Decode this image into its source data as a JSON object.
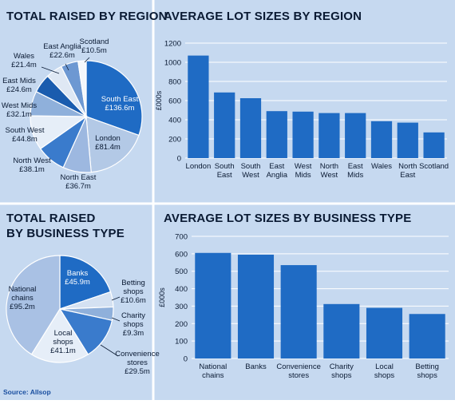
{
  "colors": {
    "background": "#c6d9f0",
    "bar": "#1f6bc4",
    "grid": "#ffffff",
    "text": "#0a1a33"
  },
  "source": "Source: Allsop",
  "chart_data": [
    {
      "type": "pie",
      "title": "TOTAL RAISED BY REGION",
      "slices": [
        {
          "name": "South East",
          "label": "£136.6m",
          "value": 136.6,
          "color": "#1f6bc4"
        },
        {
          "name": "London",
          "label": "£81.4m",
          "value": 81.4,
          "color": "#b3c9e6"
        },
        {
          "name": "North East",
          "label": "£36.7m",
          "value": 36.7,
          "color": "#9db8e0"
        },
        {
          "name": "North West",
          "label": "£38.1m",
          "value": 38.1,
          "color": "#3a7bcc"
        },
        {
          "name": "South West",
          "label": "£44.8m",
          "value": 44.8,
          "color": "#e6eef8"
        },
        {
          "name": "West Mids",
          "label": "£32.1m",
          "value": 32.1,
          "color": "#8fb0db"
        },
        {
          "name": "East Mids",
          "label": "£24.6m",
          "value": 24.6,
          "color": "#1a5cae"
        },
        {
          "name": "Wales",
          "label": "£21.4m",
          "value": 21.4,
          "color": "#dfe8f4"
        },
        {
          "name": "East Anglia",
          "label": "£22.6m",
          "value": 22.6,
          "color": "#6d98d2"
        },
        {
          "name": "Scotland",
          "label": "£10.5m",
          "value": 10.5,
          "color": "#f4f7fb"
        }
      ]
    },
    {
      "type": "bar",
      "title": "AVERAGE LOT SIZES BY REGION",
      "ylabel": "£000s",
      "ylim": [
        0,
        1200
      ],
      "yticks": [
        0,
        200,
        400,
        600,
        800,
        1000,
        1200
      ],
      "categories": [
        "London",
        "South East",
        "South West",
        "East Anglia",
        "West Mids",
        "North West",
        "East Mids",
        "Wales",
        "North East",
        "Scotland"
      ],
      "values": [
        1070,
        685,
        625,
        490,
        485,
        470,
        470,
        385,
        370,
        268
      ]
    },
    {
      "type": "pie",
      "title": "TOTAL RAISED BY BUSINESS TYPE",
      "slices": [
        {
          "name": "Banks",
          "label": "£45.9m",
          "value": 45.9,
          "color": "#1f6bc4"
        },
        {
          "name": "Betting shops",
          "label": "£10.6m",
          "value": 10.6,
          "color": "#d4e1f2"
        },
        {
          "name": "Charity shops",
          "label": "£9.3m",
          "value": 9.3,
          "color": "#8fb0db"
        },
        {
          "name": "Convenience stores",
          "label": "£29.5m",
          "value": 29.5,
          "color": "#3a7bcc"
        },
        {
          "name": "Local shops",
          "label": "£41.1m",
          "value": 41.1,
          "color": "#e6eef8"
        },
        {
          "name": "National chains",
          "label": "£95.2m",
          "value": 95.2,
          "color": "#a9c1e4"
        }
      ]
    },
    {
      "type": "bar",
      "title": "AVERAGE LOT SIZES BY BUSINESS TYPE",
      "ylabel": "£000s",
      "ylim": [
        0,
        700
      ],
      "yticks": [
        0,
        100,
        200,
        300,
        400,
        500,
        600,
        700
      ],
      "categories": [
        "National chains",
        "Banks",
        "Convenience stores",
        "Charity shops",
        "Local shops",
        "Betting shops"
      ],
      "values": [
        605,
        595,
        535,
        312,
        290,
        255
      ]
    }
  ]
}
